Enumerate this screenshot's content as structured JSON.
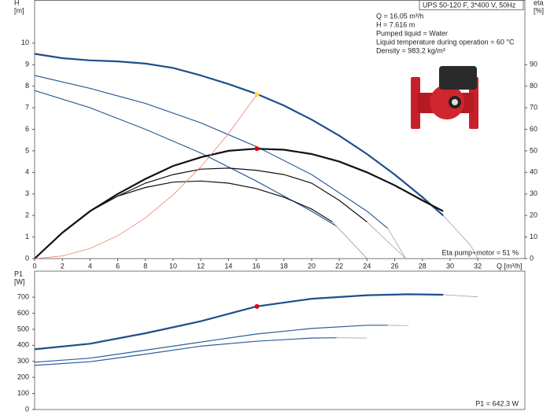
{
  "chart_data": [
    {
      "type": "line",
      "title": "UPS 50-120 F, 3*400 V, 50Hz",
      "annotations": [
        "Q = 16.05 m³/h",
        "H = 7.616 m",
        "Pumped liquid = Water",
        "Liquid temperature during operation = 60 °C",
        "Density = 983.2 kg/m³"
      ],
      "note": "Eta pump+motor = 51 %",
      "xlabel": "Q [m³/h]",
      "ylabel": "H",
      "yunit": "[m]",
      "y2label": "eta",
      "y2unit": "[%]",
      "xlim": [
        0,
        35.4
      ],
      "xticks": [
        0,
        2,
        4,
        6,
        8,
        10,
        12,
        14,
        16,
        18,
        20,
        22,
        24,
        26,
        28,
        30,
        32
      ],
      "ylim": [
        0,
        12
      ],
      "yticks": [
        0,
        1,
        2,
        3,
        4,
        5,
        6,
        7,
        8,
        9,
        10
      ],
      "y2lim": [
        0,
        120
      ],
      "y2ticks": [
        0,
        10,
        20,
        30,
        40,
        50,
        60,
        70,
        80,
        90
      ],
      "grid": false,
      "series": [
        {
          "color": "#1f4e8c",
          "style": "thick",
          "x": [
            0,
            2,
            4,
            6,
            8,
            10,
            12,
            14,
            16,
            18,
            20,
            22,
            24,
            26,
            28,
            29.5
          ],
          "values": [
            9.5,
            9.3,
            9.2,
            9.15,
            9.05,
            8.85,
            8.5,
            8.1,
            7.65,
            7.1,
            6.45,
            5.7,
            4.85,
            3.9,
            2.85,
            2.0
          ]
        },
        {
          "color": "#9aa3ad",
          "style": "thin",
          "x": [
            29.5,
            30.5,
            31.5,
            32
          ],
          "values": [
            2.0,
            1.3,
            0.6,
            0
          ]
        },
        {
          "color": "#2b5f9a",
          "style": "normal",
          "x": [
            0,
            4,
            8,
            12,
            16,
            20,
            24,
            25.5
          ],
          "values": [
            8.5,
            7.9,
            7.2,
            6.3,
            5.2,
            3.9,
            2.2,
            1.4
          ]
        },
        {
          "color": "#9aa3ad",
          "style": "thin",
          "x": [
            25.5,
            26.8
          ],
          "values": [
            1.4,
            0
          ]
        },
        {
          "color": "#2b5f9a",
          "style": "normal",
          "x": [
            0,
            4,
            8,
            12,
            16,
            20,
            21.8
          ],
          "values": [
            7.8,
            7.0,
            6.0,
            4.9,
            3.6,
            2.2,
            1.5
          ]
        },
        {
          "color": "#9aa3ad",
          "style": "thin",
          "x": [
            21.8,
            24
          ],
          "values": [
            1.5,
            0
          ]
        },
        {
          "color": "#111111",
          "style": "thick",
          "axis": "y2",
          "x": [
            0,
            2,
            4,
            6,
            8,
            10,
            12,
            14,
            16,
            18,
            20,
            22,
            24,
            26,
            28,
            29.5
          ],
          "values": [
            0,
            12,
            22,
            30,
            37,
            43,
            47,
            50,
            51,
            50.5,
            48.5,
            45,
            40,
            34,
            27,
            22
          ]
        },
        {
          "color": "#111111",
          "style": "normal",
          "axis": "y2",
          "x": [
            0,
            2,
            4,
            6,
            8,
            10,
            12,
            14,
            16,
            18,
            20,
            22,
            24
          ],
          "values": [
            0,
            12,
            22,
            29,
            35,
            39,
            41.5,
            42,
            41,
            39,
            35,
            27,
            17
          ]
        },
        {
          "color": "#9aa3ad",
          "style": "thin",
          "axis": "y2",
          "x": [
            24,
            26.8
          ],
          "values": [
            17,
            0
          ]
        },
        {
          "color": "#111111",
          "style": "normal",
          "axis": "y2",
          "x": [
            0,
            2,
            4,
            6,
            8,
            10,
            12,
            14,
            16,
            18,
            20,
            21.5
          ],
          "values": [
            0,
            12,
            22,
            29,
            33,
            35.5,
            36,
            35,
            32.5,
            28.5,
            23,
            17
          ]
        },
        {
          "color": "#9aa3ad",
          "style": "thin",
          "axis": "y2",
          "x": [
            21.5,
            24
          ],
          "values": [
            17,
            0
          ]
        },
        {
          "color": "#f08070",
          "style": "thin",
          "x": [
            0,
            2,
            4,
            6,
            8,
            10,
            12,
            14,
            16.05
          ],
          "values": [
            0,
            0.12,
            0.47,
            1.06,
            1.89,
            2.96,
            4.26,
            5.8,
            7.616
          ]
        }
      ],
      "points": [
        {
          "x": 16.05,
          "y": 7.616,
          "color": "#ffe03c"
        },
        {
          "x": 16.05,
          "y": 51,
          "axis": "y2",
          "color": "#e3000f"
        }
      ]
    },
    {
      "type": "line",
      "note": "P1 = 642.3 W",
      "ylabel": "P1",
      "yunit": "[W]",
      "xlim": [
        0,
        35.4
      ],
      "ylim": [
        0,
        862
      ],
      "yticks": [
        0,
        100,
        200,
        300,
        400,
        500,
        600,
        700
      ],
      "grid": false,
      "series": [
        {
          "color": "#1f4e8c",
          "style": "thick",
          "x": [
            0,
            4,
            8,
            12,
            16,
            20,
            24,
            27,
            29.5
          ],
          "values": [
            375,
            410,
            475,
            550,
            642,
            690,
            712,
            718,
            715
          ]
        },
        {
          "color": "#9aa3ad",
          "style": "thin",
          "x": [
            29.5,
            32
          ],
          "values": [
            715,
            702
          ]
        },
        {
          "color": "#2b5f9a",
          "style": "normal",
          "x": [
            0,
            4,
            8,
            12,
            16,
            20,
            24,
            25.5
          ],
          "values": [
            295,
            320,
            370,
            420,
            470,
            505,
            525,
            525
          ]
        },
        {
          "color": "#9aa3ad",
          "style": "thin",
          "x": [
            25.5,
            27
          ],
          "values": [
            525,
            522
          ]
        },
        {
          "color": "#2b5f9a",
          "style": "normal",
          "x": [
            0,
            4,
            8,
            12,
            16,
            20,
            21.8
          ],
          "values": [
            275,
            298,
            345,
            395,
            425,
            445,
            447
          ]
        },
        {
          "color": "#9aa3ad",
          "style": "thin",
          "x": [
            21.8,
            24
          ],
          "values": [
            447,
            445
          ]
        }
      ],
      "points": [
        {
          "x": 16.05,
          "y": 642.3,
          "color": "#e3000f"
        }
      ]
    }
  ]
}
